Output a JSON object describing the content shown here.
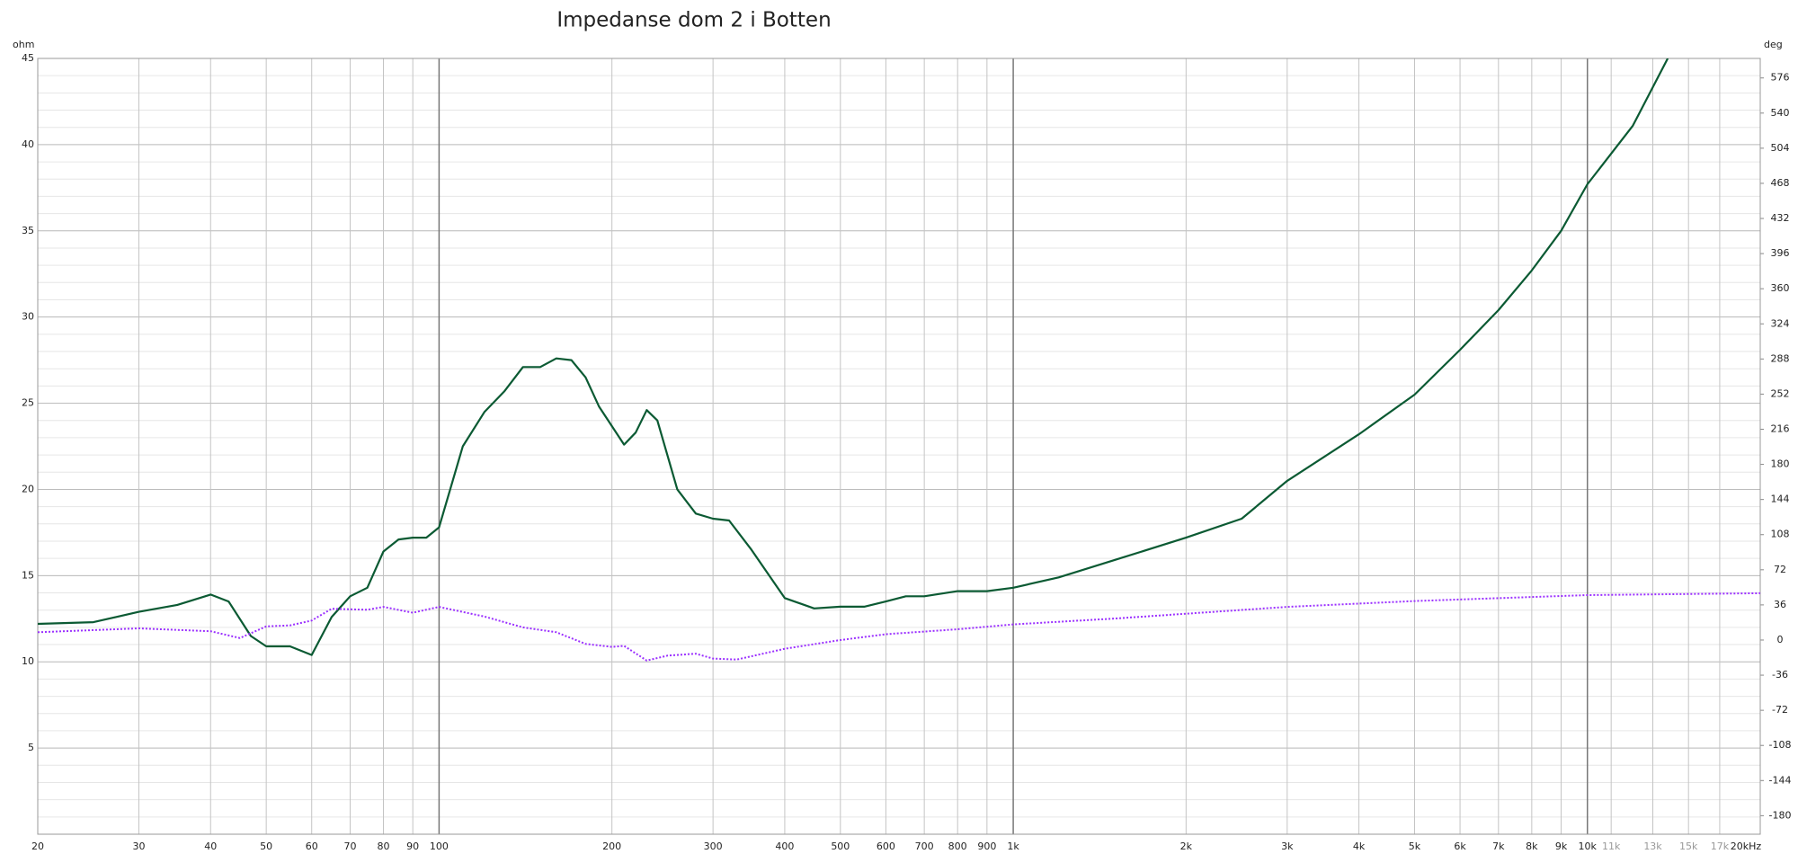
{
  "chart_data": {
    "type": "line",
    "title": "Impedanse dom 2 i Botten",
    "y_label": "ohm",
    "y2_label": "deg",
    "xscale": "log",
    "grid": true,
    "y_minor_step": 1,
    "xlim": [
      20,
      20000
    ],
    "ylim": [
      0,
      45
    ],
    "y2lim": [
      -199,
      596
    ],
    "xticks": [
      20,
      30,
      40,
      50,
      60,
      70,
      80,
      90,
      100,
      200,
      300,
      400,
      500,
      600,
      700,
      800,
      900,
      {
        "value": 1000,
        "label": "1k"
      },
      {
        "value": 2000,
        "label": "2k"
      },
      {
        "value": 3000,
        "label": "3k"
      },
      {
        "value": 4000,
        "label": "4k"
      },
      {
        "value": 5000,
        "label": "5k"
      },
      {
        "value": 6000,
        "label": "6k"
      },
      {
        "value": 7000,
        "label": "7k"
      },
      {
        "value": 8000,
        "label": "8k"
      },
      {
        "value": 9000,
        "label": "9k"
      },
      {
        "value": 10000,
        "label": "10k"
      },
      {
        "value": 11000,
        "label": "11k"
      },
      {
        "value": 13000,
        "label": "13k"
      },
      {
        "value": 15000,
        "label": "15k"
      },
      {
        "value": 17000,
        "label": "17k"
      },
      {
        "value": 20000,
        "label": "20kHz"
      }
    ],
    "muted_xticks_above": 10000,
    "yticks": [
      5,
      10,
      15,
      20,
      25,
      30,
      35,
      40,
      45
    ],
    "y2ticks": [
      -180,
      -144,
      -108,
      -72,
      -36,
      0,
      36,
      72,
      108,
      144,
      180,
      216,
      252,
      288,
      324,
      360,
      396,
      432,
      468,
      504,
      540,
      576
    ],
    "series": [
      {
        "color": "#0b5a33",
        "dash": false,
        "x": [
          20,
          25,
          30,
          35,
          40,
          43,
          47,
          50,
          55,
          60,
          65,
          70,
          75,
          80,
          85,
          90,
          95,
          100,
          110,
          120,
          130,
          140,
          150,
          160,
          170,
          180,
          190,
          210,
          220,
          230,
          240,
          260,
          280,
          300,
          320,
          350,
          400,
          450,
          500,
          550,
          600,
          650,
          700,
          800,
          900,
          1000,
          1200,
          1500,
          2000,
          2500,
          3000,
          4000,
          5000,
          6000,
          7000,
          8000,
          9000,
          10000,
          12000,
          13800
        ],
        "values": [
          12.2,
          12.3,
          12.9,
          13.3,
          13.9,
          13.5,
          11.5,
          10.9,
          10.9,
          10.4,
          12.6,
          13.8,
          14.3,
          16.4,
          17.1,
          17.2,
          17.2,
          17.8,
          22.5,
          24.5,
          25.7,
          27.1,
          27.1,
          27.6,
          27.5,
          26.5,
          24.8,
          22.6,
          23.3,
          24.6,
          24.0,
          20.0,
          18.6,
          18.3,
          18.2,
          16.5,
          13.7,
          13.1,
          13.2,
          13.2,
          13.5,
          13.8,
          13.8,
          14.1,
          14.1,
          14.3,
          14.9,
          15.9,
          17.2,
          18.3,
          20.5,
          23.2,
          25.5,
          28.1,
          30.4,
          32.7,
          35.0,
          37.7,
          41.1,
          45.0
        ]
      },
      {
        "color": "#9b30ff",
        "dash": true,
        "axis": "y2",
        "x": [
          20,
          30,
          40,
          45,
          50,
          55,
          60,
          65,
          75,
          80,
          90,
          100,
          120,
          140,
          160,
          180,
          200,
          210,
          230,
          250,
          280,
          300,
          330,
          400,
          500,
          600,
          800,
          1000,
          1500,
          2000,
          3000,
          5000,
          10000,
          20000
        ],
        "values": [
          8,
          12,
          9,
          2,
          14,
          15,
          20,
          32,
          31,
          34,
          28,
          34,
          24,
          13,
          8,
          -4,
          -7,
          -6,
          -21,
          -16,
          -14,
          -19,
          -20,
          -9,
          0,
          6,
          11,
          16,
          22,
          27,
          34,
          40,
          46,
          48
        ]
      }
    ]
  }
}
